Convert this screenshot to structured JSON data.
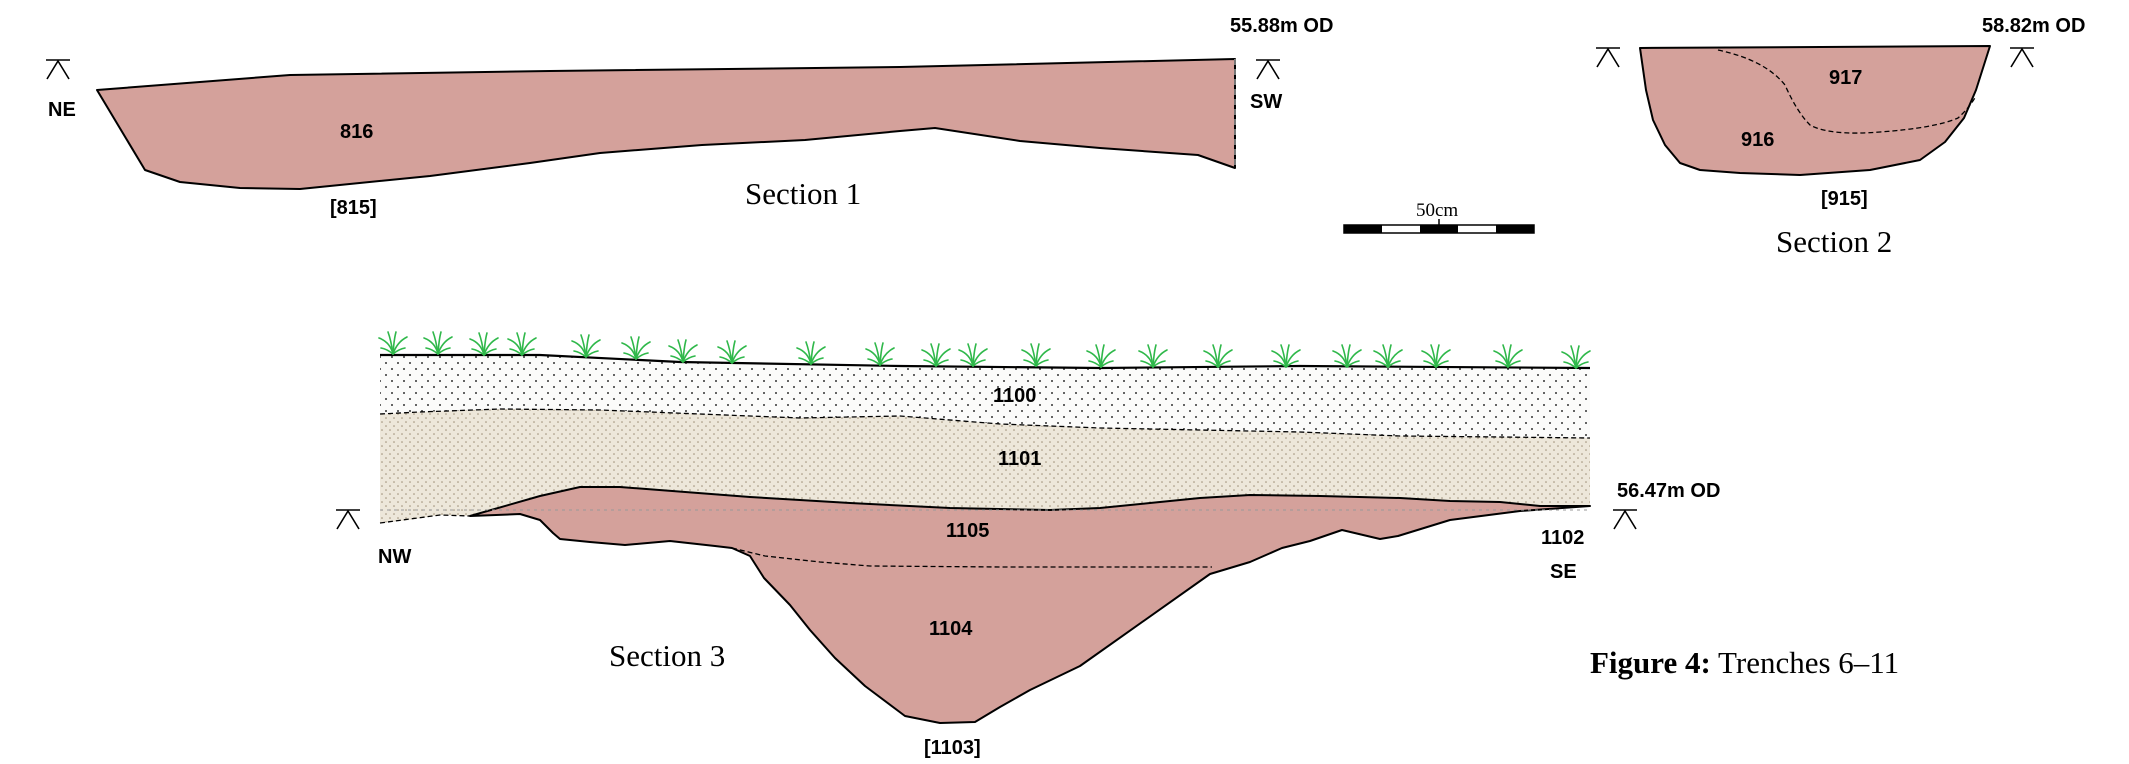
{
  "figure": {
    "caption_bold": "Figure 4:",
    "caption_text": " Trenches 6–11",
    "colors": {
      "feature_fill": "#d4a19b",
      "topsoil": "#fbfbfa",
      "subsoil": "#ede7da",
      "vegetation": "#2fb84a",
      "line": "#000000"
    }
  },
  "section1": {
    "title": "Section 1",
    "od_label": "55.88m OD",
    "left_end": "NE",
    "right_end": "SW",
    "fill_context": "816",
    "cut_number": "[815]"
  },
  "section2": {
    "title": "Section 2",
    "od_label": "58.82m OD",
    "upper_fill": "917",
    "lower_fill": "916",
    "cut_number": "[915]"
  },
  "section3": {
    "title": "Section 3",
    "od_label": "56.47m OD",
    "left_end": "NW",
    "right_end": "SE",
    "topsoil": "1100",
    "subsoil": "1101",
    "upper_fill": "1105",
    "lower_fill": "1104",
    "edge_layer": "1102",
    "cut_number": "[1103]"
  },
  "scale_bar": {
    "label": "50cm"
  }
}
